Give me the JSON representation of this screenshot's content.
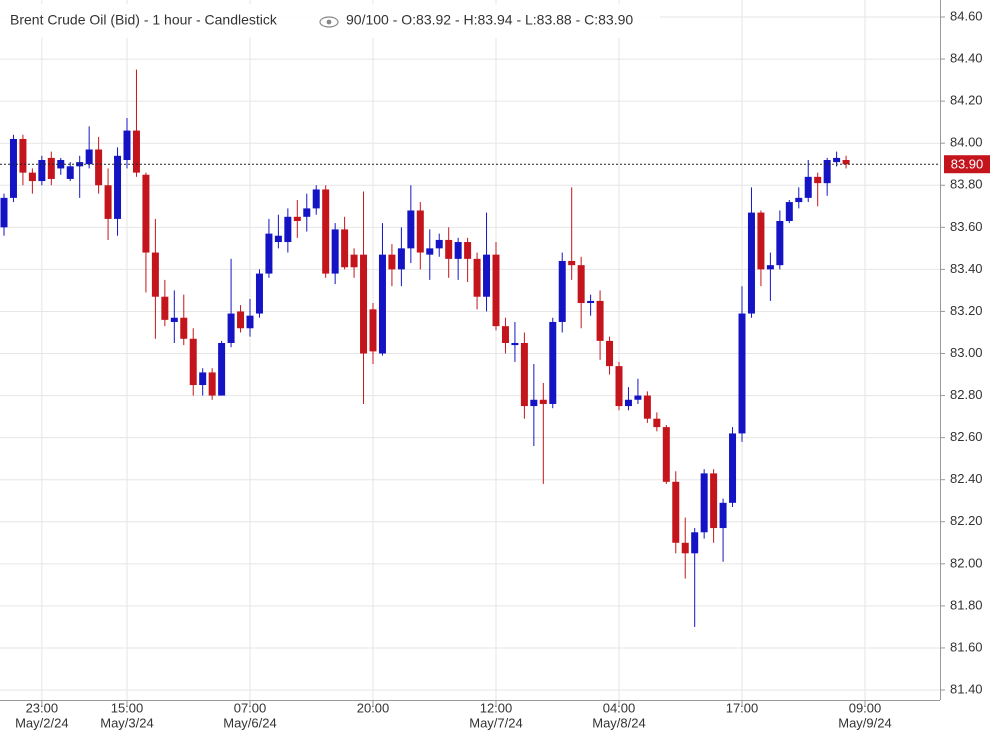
{
  "chart_data": {
    "type": "candlestick",
    "title": "Brent Crude Oil (Bid) - 1 hour - Candlestick",
    "ohlc_text": "90/100 - O:83.92 - H:83.94 - L:83.88 - C:83.90",
    "up_color": "#1414c4",
    "down_color": "#c4141c",
    "categories": [
      null,
      null,
      null,
      null,
      "23:00",
      null,
      null,
      null,
      null,
      null,
      null,
      null,
      null,
      "15:00",
      null,
      null,
      null,
      null,
      null,
      null,
      null,
      null,
      null,
      null,
      null,
      null,
      "07:00",
      null,
      null,
      null,
      null,
      null,
      null,
      null,
      null,
      null,
      null,
      null,
      null,
      "20:00",
      null,
      null,
      null,
      null,
      null,
      null,
      null,
      null,
      null,
      null,
      null,
      null,
      "12:00",
      null,
      null,
      null,
      null,
      null,
      null,
      null,
      null,
      null,
      null,
      null,
      null,
      "04:00",
      null,
      null,
      null,
      null,
      null,
      null,
      null,
      null,
      null,
      null,
      null,
      null,
      "17:00",
      null,
      null,
      null,
      null,
      null,
      null,
      null,
      null,
      null,
      null,
      null,
      null,
      "09:00"
    ],
    "category_dates": [
      null,
      null,
      null,
      null,
      "May/2/24",
      null,
      null,
      null,
      null,
      null,
      null,
      null,
      null,
      "May/3/24",
      null,
      null,
      null,
      null,
      null,
      null,
      null,
      null,
      null,
      null,
      null,
      null,
      "May/6/24",
      null,
      null,
      null,
      null,
      null,
      null,
      null,
      null,
      null,
      null,
      null,
      null,
      null,
      null,
      null,
      null,
      null,
      null,
      null,
      null,
      null,
      null,
      null,
      null,
      null,
      "May/7/24",
      null,
      null,
      null,
      null,
      null,
      null,
      null,
      null,
      null,
      null,
      null,
      null,
      "May/8/24",
      null,
      null,
      null,
      null,
      null,
      null,
      null,
      null,
      null,
      null,
      null,
      null,
      null,
      null,
      null,
      null,
      null,
      null,
      null,
      null,
      null,
      null,
      null,
      null,
      null,
      "May/9/24"
    ],
    "open": [
      83.6,
      83.74,
      84.02,
      83.86,
      83.82,
      83.93,
      83.88,
      83.83,
      83.89,
      83.9,
      83.97,
      83.8,
      83.64,
      83.92,
      84.06,
      83.85,
      83.48,
      83.27,
      83.15,
      83.17,
      83.07,
      82.85,
      82.91,
      82.8,
      83.05,
      83.2,
      83.12,
      83.19,
      83.38,
      83.53,
      83.53,
      83.65,
      83.65,
      83.69,
      83.78,
      83.38,
      83.59,
      83.47,
      83.47,
      83.21,
      83.0,
      83.47,
      83.4,
      83.5,
      83.68,
      83.47,
      83.5,
      83.54,
      83.45,
      83.53,
      83.45,
      83.27,
      83.47,
      83.13,
      83.04,
      83.05,
      82.75,
      82.78,
      82.76,
      83.15,
      83.44,
      83.42,
      83.24,
      83.25,
      83.06,
      82.94,
      82.75,
      82.78,
      82.8,
      82.69,
      82.65,
      82.39,
      82.1,
      82.05,
      82.15,
      82.43,
      82.17,
      82.29,
      82.62,
      83.19,
      83.67,
      83.4,
      83.42,
      83.63,
      83.72,
      83.74,
      83.84,
      83.81,
      83.91,
      83.92,
      null,
      null
    ],
    "high": [
      83.76,
      84.04,
      84.04,
      83.88,
      83.94,
      83.96,
      83.93,
      83.91,
      83.94,
      84.08,
      84.03,
      83.88,
      83.98,
      84.12,
      84.35,
      83.86,
      83.64,
      83.35,
      83.3,
      83.28,
      83.12,
      82.93,
      82.93,
      83.06,
      83.45,
      83.23,
      83.26,
      83.4,
      83.64,
      83.66,
      83.69,
      83.73,
      83.76,
      83.8,
      83.8,
      83.62,
      83.65,
      83.5,
      83.77,
      83.24,
      83.62,
      83.52,
      83.6,
      83.8,
      83.72,
      83.59,
      83.57,
      83.6,
      83.55,
      83.55,
      83.48,
      83.67,
      83.53,
      83.17,
      83.15,
      83.1,
      82.95,
      82.86,
      83.17,
      83.48,
      83.79,
      83.46,
      83.28,
      83.3,
      83.08,
      82.96,
      82.84,
      82.88,
      82.82,
      82.72,
      82.66,
      82.44,
      82.22,
      82.17,
      82.45,
      82.45,
      82.31,
      82.65,
      83.32,
      83.79,
      83.68,
      83.48,
      83.68,
      83.73,
      83.79,
      83.92,
      83.86,
      83.93,
      83.96,
      83.94,
      null,
      null
    ],
    "low": [
      83.56,
      83.72,
      83.8,
      83.76,
      83.8,
      83.8,
      83.85,
      83.82,
      83.74,
      83.88,
      83.76,
      83.54,
      83.56,
      83.88,
      83.84,
      83.29,
      83.07,
      83.13,
      83.05,
      83.04,
      82.8,
      82.8,
      82.78,
      82.8,
      83.03,
      83.1,
      83.08,
      83.17,
      83.36,
      83.5,
      83.48,
      83.55,
      83.58,
      83.66,
      83.36,
      83.33,
      83.4,
      83.36,
      82.76,
      82.95,
      82.99,
      83.32,
      83.32,
      83.43,
      83.4,
      83.35,
      83.46,
      83.36,
      83.35,
      83.34,
      83.21,
      83.2,
      83.11,
      83.0,
      82.96,
      82.69,
      82.56,
      82.38,
      82.74,
      83.1,
      83.35,
      83.12,
      83.18,
      82.97,
      82.9,
      82.73,
      82.73,
      82.76,
      82.67,
      82.63,
      82.38,
      82.05,
      81.93,
      81.7,
      82.12,
      82.1,
      82.01,
      82.27,
      82.58,
      83.17,
      83.32,
      83.25,
      83.4,
      83.62,
      83.69,
      83.72,
      83.7,
      83.75,
      83.89,
      83.88,
      null,
      null
    ],
    "close": [
      83.74,
      84.02,
      83.86,
      83.82,
      83.92,
      83.83,
      83.92,
      83.89,
      83.91,
      83.97,
      83.8,
      83.64,
      83.94,
      84.06,
      83.86,
      83.48,
      83.27,
      83.16,
      83.17,
      83.07,
      82.85,
      82.91,
      82.8,
      83.05,
      83.19,
      83.12,
      83.18,
      83.38,
      83.57,
      83.56,
      83.65,
      83.63,
      83.69,
      83.78,
      83.38,
      83.59,
      83.41,
      83.41,
      83.0,
      83.01,
      83.47,
      83.4,
      83.5,
      83.68,
      83.48,
      83.5,
      83.54,
      83.45,
      83.53,
      83.45,
      83.27,
      83.47,
      83.13,
      83.05,
      83.05,
      82.75,
      82.78,
      82.76,
      83.15,
      83.44,
      83.42,
      83.24,
      83.25,
      83.06,
      82.94,
      82.75,
      82.78,
      82.8,
      82.69,
      82.65,
      82.39,
      82.1,
      82.05,
      82.15,
      82.43,
      82.17,
      82.29,
      82.62,
      83.19,
      83.67,
      83.4,
      83.42,
      83.63,
      83.72,
      83.74,
      83.84,
      83.81,
      83.92,
      83.93,
      83.9,
      null,
      null
    ],
    "last_price": {
      "value": 83.9,
      "label": "83.90"
    },
    "last_price_color": "#c4141c",
    "ylim": [
      81.4,
      84.6
    ],
    "yticks": [
      {
        "value": 81.4,
        "label": "81.40"
      },
      {
        "value": 81.6,
        "label": "81.60"
      },
      {
        "value": 81.8,
        "label": "81.80"
      },
      {
        "value": 82,
        "label": "82.00"
      },
      {
        "value": 82.2,
        "label": "82.20"
      },
      {
        "value": 82.4,
        "label": "82.40"
      },
      {
        "value": 82.6,
        "label": "82.60"
      },
      {
        "value": 82.8,
        "label": "82.80"
      },
      {
        "value": 83,
        "label": "83.00"
      },
      {
        "value": 83.2,
        "label": "83.20"
      },
      {
        "value": 83.4,
        "label": "83.40"
      },
      {
        "value": 83.6,
        "label": "83.60"
      },
      {
        "value": 83.8,
        "label": "83.80"
      },
      {
        "value": 84,
        "label": "84.00"
      },
      {
        "value": 84.2,
        "label": "84.20"
      },
      {
        "value": 84.4,
        "label": "84.40"
      },
      {
        "value": 84.6,
        "label": "84.60"
      }
    ],
    "grid": true
  }
}
